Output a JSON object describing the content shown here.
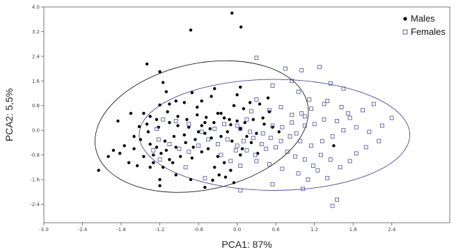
{
  "chart_data": {
    "type": "scatter",
    "xlabel": "PCA1: 87%",
    "ylabel": "PCA2: 5,5%",
    "xlim": [
      -3.0,
      3.3
    ],
    "ylim": [
      -3.0,
      4.0
    ],
    "x_ticks": [
      "-3.0",
      "-2.4",
      "-1.8",
      "-1.2",
      "-0.6",
      "0.0",
      "0.6",
      "1.2",
      "1.8",
      "2.4"
    ],
    "y_ticks": [
      "4.0",
      "3.2",
      "2.4",
      "1.6",
      "0.8",
      "0.0",
      "-0.8",
      "-1.6",
      "-2.4"
    ],
    "grid": false,
    "legend_position": "top-right",
    "series": [
      {
        "name": "Males",
        "marker": "filled-circle",
        "color": "#000000",
        "points": [
          [
            -0.08,
            3.8
          ],
          [
            0.06,
            3.35
          ],
          [
            -0.72,
            3.25
          ],
          [
            -1.4,
            2.15
          ],
          [
            -1.2,
            1.9
          ],
          [
            -1.15,
            1.55
          ],
          [
            -1.1,
            1.25
          ],
          [
            -0.95,
            0.95
          ],
          [
            -1.05,
            0.85
          ],
          [
            -1.2,
            0.82
          ],
          [
            -0.82,
            0.9
          ],
          [
            -0.62,
            0.75
          ],
          [
            -0.4,
            1.1
          ],
          [
            -0.35,
            1.35
          ],
          [
            -0.7,
            1.22
          ],
          [
            -0.55,
            0.95
          ],
          [
            -0.3,
            0.55
          ],
          [
            -0.2,
            0.4
          ],
          [
            0.0,
            0.3
          ],
          [
            -0.1,
            0.18
          ],
          [
            0.12,
            0.25
          ],
          [
            0.25,
            0.35
          ],
          [
            0.4,
            0.4
          ],
          [
            0.5,
            0.6
          ],
          [
            0.35,
            0.85
          ],
          [
            0.2,
            0.9
          ],
          [
            0.1,
            0.7
          ],
          [
            -0.05,
            0.8
          ],
          [
            0.0,
            1.15
          ],
          [
            0.05,
            1.4
          ],
          [
            0.48,
            1.05
          ],
          [
            0.42,
            0.2
          ],
          [
            0.55,
            0.1
          ],
          [
            0.65,
            -0.05
          ],
          [
            0.3,
            -0.1
          ],
          [
            0.15,
            -0.2
          ],
          [
            0.05,
            0.05
          ],
          [
            -0.15,
            -0.05
          ],
          [
            -0.25,
            -0.2
          ],
          [
            -0.4,
            -0.25
          ],
          [
            -0.5,
            -0.1
          ],
          [
            -0.65,
            -0.3
          ],
          [
            -0.8,
            -0.4
          ],
          [
            -0.95,
            -0.55
          ],
          [
            -1.1,
            -0.65
          ],
          [
            -1.18,
            -0.75
          ],
          [
            -1.25,
            -0.55
          ],
          [
            -1.35,
            -0.45
          ],
          [
            -1.5,
            -0.3
          ],
          [
            -1.6,
            -0.2
          ],
          [
            -1.75,
            -0.5
          ],
          [
            -1.82,
            -0.75
          ],
          [
            -1.6,
            -0.6
          ],
          [
            -1.45,
            -0.85
          ],
          [
            -1.3,
            -1.05
          ],
          [
            -1.15,
            -1.2
          ],
          [
            -1.05,
            -0.95
          ],
          [
            -0.88,
            -0.85
          ],
          [
            -0.7,
            -0.9
          ],
          [
            -0.55,
            -0.7
          ],
          [
            -0.45,
            -0.6
          ],
          [
            -0.3,
            -0.85
          ],
          [
            -0.2,
            -1.05
          ],
          [
            -0.1,
            -1.3
          ],
          [
            -0.28,
            -1.45
          ],
          [
            -0.38,
            -1.62
          ],
          [
            -0.5,
            -1.85
          ],
          [
            -0.72,
            -1.6
          ],
          [
            -0.95,
            -1.45
          ],
          [
            -1.2,
            -1.6
          ],
          [
            -1.2,
            -1.8
          ],
          [
            -1.35,
            -1.2
          ],
          [
            -1.55,
            -1.15
          ],
          [
            -1.68,
            -1.05
          ],
          [
            -1.92,
            -0.65
          ],
          [
            -2.0,
            -0.85
          ],
          [
            -2.15,
            -1.3
          ],
          [
            -1.85,
            0.3
          ],
          [
            -1.65,
            0.55
          ],
          [
            -1.45,
            0.55
          ],
          [
            -1.35,
            0.45
          ],
          [
            -1.25,
            0.35
          ],
          [
            -1.08,
            0.6
          ],
          [
            -0.92,
            0.45
          ],
          [
            -0.78,
            0.35
          ],
          [
            -0.62,
            0.5
          ],
          [
            -0.48,
            0.42
          ],
          [
            -0.36,
            0.25
          ],
          [
            -0.42,
            0.05
          ],
          [
            -0.6,
            -0.05
          ],
          [
            -0.75,
            0.1
          ],
          [
            -0.92,
            0.15
          ],
          [
            -1.05,
            0.25
          ],
          [
            -1.22,
            0.1
          ],
          [
            -1.38,
            -0.05
          ],
          [
            -1.52,
            0.12
          ],
          [
            -1.12,
            -0.35
          ],
          [
            -0.98,
            -0.2
          ],
          [
            -0.82,
            -0.15
          ],
          [
            -0.68,
            -0.55
          ],
          [
            -0.35,
            -1.2
          ],
          [
            -0.18,
            -1.52
          ],
          [
            -0.05,
            -1.7
          ],
          [
            0.08,
            -0.6
          ],
          [
            0.22,
            -0.4
          ],
          [
            0.32,
            -0.75
          ],
          [
            -0.5,
            0.25
          ],
          [
            -0.25,
            0.55
          ],
          [
            -0.12,
            0.35
          ],
          [
            -0.08,
            -0.35
          ],
          [
            0.05,
            -0.8
          ],
          [
            -1.0,
            -1.05
          ],
          [
            -1.3,
            -0.8
          ],
          [
            -1.4,
            0.2
          ],
          [
            -0.55,
            0.15
          ],
          [
            1.5,
            -0.5
          ]
        ]
      },
      {
        "name": "Females",
        "marker": "open-square",
        "color": "#4a4a9c",
        "points": [
          [
            0.3,
            2.35
          ],
          [
            0.75,
            2.0
          ],
          [
            1.0,
            1.95
          ],
          [
            1.28,
            2.05
          ],
          [
            0.85,
            1.6
          ],
          [
            1.45,
            1.52
          ],
          [
            0.55,
            1.45
          ],
          [
            0.95,
            1.25
          ],
          [
            1.65,
            1.35
          ],
          [
            1.12,
            1.0
          ],
          [
            1.4,
            0.95
          ],
          [
            0.3,
            1.0
          ],
          [
            0.5,
            0.65
          ],
          [
            0.68,
            0.75
          ],
          [
            0.85,
            0.5
          ],
          [
            1.0,
            0.55
          ],
          [
            1.15,
            0.7
          ],
          [
            1.35,
            0.85
          ],
          [
            1.62,
            0.75
          ],
          [
            1.95,
            0.65
          ],
          [
            2.12,
            0.85
          ],
          [
            2.4,
            0.4
          ],
          [
            1.75,
            0.4
          ],
          [
            1.55,
            0.3
          ],
          [
            1.35,
            0.35
          ],
          [
            1.2,
            0.2
          ],
          [
            1.05,
            0.15
          ],
          [
            0.85,
            0.25
          ],
          [
            0.7,
            0.1
          ],
          [
            0.55,
            0.15
          ],
          [
            0.4,
            -0.1
          ],
          [
            0.25,
            -0.25
          ],
          [
            0.1,
            -0.35
          ],
          [
            0.0,
            -0.5
          ],
          [
            0.15,
            -0.65
          ],
          [
            0.28,
            -0.8
          ],
          [
            0.45,
            -0.6
          ],
          [
            0.6,
            -0.55
          ],
          [
            0.78,
            -0.7
          ],
          [
            0.9,
            -0.85
          ],
          [
            1.05,
            -0.95
          ],
          [
            1.18,
            -1.15
          ],
          [
            1.3,
            -0.8
          ],
          [
            1.45,
            -0.95
          ],
          [
            1.6,
            -1.2
          ],
          [
            1.75,
            -1.0
          ],
          [
            1.85,
            -0.75
          ],
          [
            2.0,
            -0.55
          ],
          [
            2.2,
            -0.35
          ],
          [
            2.05,
            -0.05
          ],
          [
            1.85,
            0.1
          ],
          [
            1.65,
            0.0
          ],
          [
            1.48,
            -0.2
          ],
          [
            1.32,
            -0.35
          ],
          [
            1.15,
            -0.5
          ],
          [
            0.98,
            -0.35
          ],
          [
            0.82,
            -0.2
          ],
          [
            0.68,
            -0.35
          ],
          [
            0.52,
            -0.25
          ],
          [
            0.38,
            -0.45
          ],
          [
            0.2,
            -0.05
          ],
          [
            0.05,
            0.05
          ],
          [
            -0.15,
            -0.3
          ],
          [
            -0.3,
            -0.45
          ],
          [
            -0.45,
            -0.3
          ],
          [
            -0.6,
            -0.5
          ],
          [
            -0.75,
            -0.7
          ],
          [
            -0.9,
            -0.6
          ],
          [
            -1.05,
            -0.45
          ],
          [
            -1.22,
            -0.3
          ],
          [
            -1.25,
            0.05
          ],
          [
            -1.15,
            0.35
          ],
          [
            -0.95,
            0.3
          ],
          [
            -0.75,
            0.2
          ],
          [
            -0.55,
            -0.05
          ],
          [
            -0.35,
            0.05
          ],
          [
            -0.2,
            0.2
          ],
          [
            0.0,
            0.15
          ],
          [
            0.15,
            0.35
          ],
          [
            -0.25,
            -0.8
          ],
          [
            -0.1,
            -1.0
          ],
          [
            0.05,
            -1.15
          ],
          [
            0.3,
            -1.0
          ],
          [
            0.5,
            -1.1
          ],
          [
            0.7,
            -1.25
          ],
          [
            0.95,
            -1.4
          ],
          [
            1.1,
            -1.6
          ],
          [
            1.25,
            -1.3
          ],
          [
            1.4,
            -1.55
          ],
          [
            1.55,
            -2.25
          ],
          [
            1.48,
            -2.45
          ],
          [
            1.02,
            -1.9
          ],
          [
            0.55,
            -1.75
          ],
          [
            0.05,
            -1.95
          ],
          [
            -0.5,
            -1.55
          ],
          [
            -0.8,
            -1.2
          ],
          [
            -1.2,
            -0.95
          ],
          [
            -1.3,
            -0.65
          ],
          [
            -0.02,
            -0.65
          ],
          [
            0.92,
            -0.1
          ],
          [
            1.72,
            0.55
          ],
          [
            2.25,
            0.15
          ],
          [
            1.05,
            0.45
          ],
          [
            0.22,
            0.62
          ]
        ]
      }
    ],
    "ellipses": [
      {
        "series": "Males",
        "color": "#222222",
        "center": [
          -0.55,
          0.12
        ],
        "semi_axes": [
          1.68,
          2.05
        ],
        "rotation_deg": -12
      },
      {
        "series": "Females",
        "color": "#4a4a9c",
        "center": [
          0.58,
          -0.15
        ],
        "semi_axes": [
          2.1,
          1.8
        ],
        "rotation_deg": 0
      }
    ]
  }
}
